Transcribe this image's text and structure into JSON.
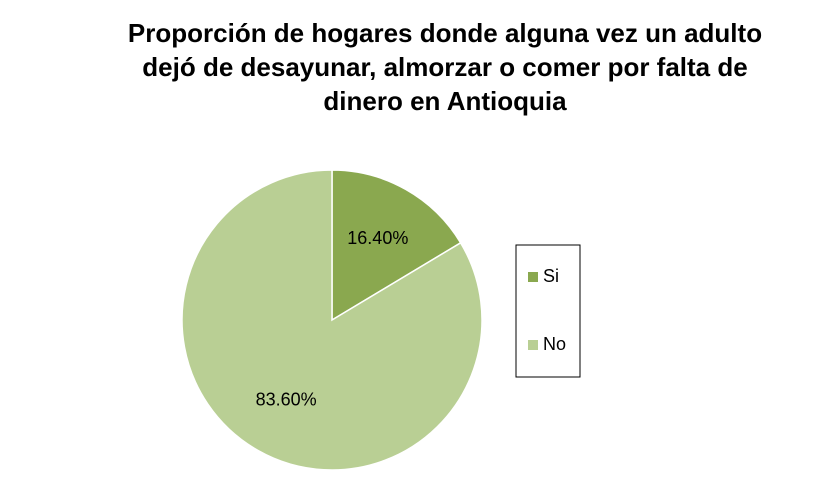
{
  "chart_data": {
    "type": "pie",
    "title": "Proporción de hogares donde alguna vez un adulto dejó de desayunar, almorzar o comer por falta de dinero en Antioquia",
    "categories": [
      "Si",
      "No"
    ],
    "values": [
      16.4,
      83.6
    ],
    "value_labels": [
      "16.40%",
      "83.60%"
    ],
    "colors": [
      "#8aa84f",
      "#b9cf94"
    ],
    "legend": "right"
  }
}
